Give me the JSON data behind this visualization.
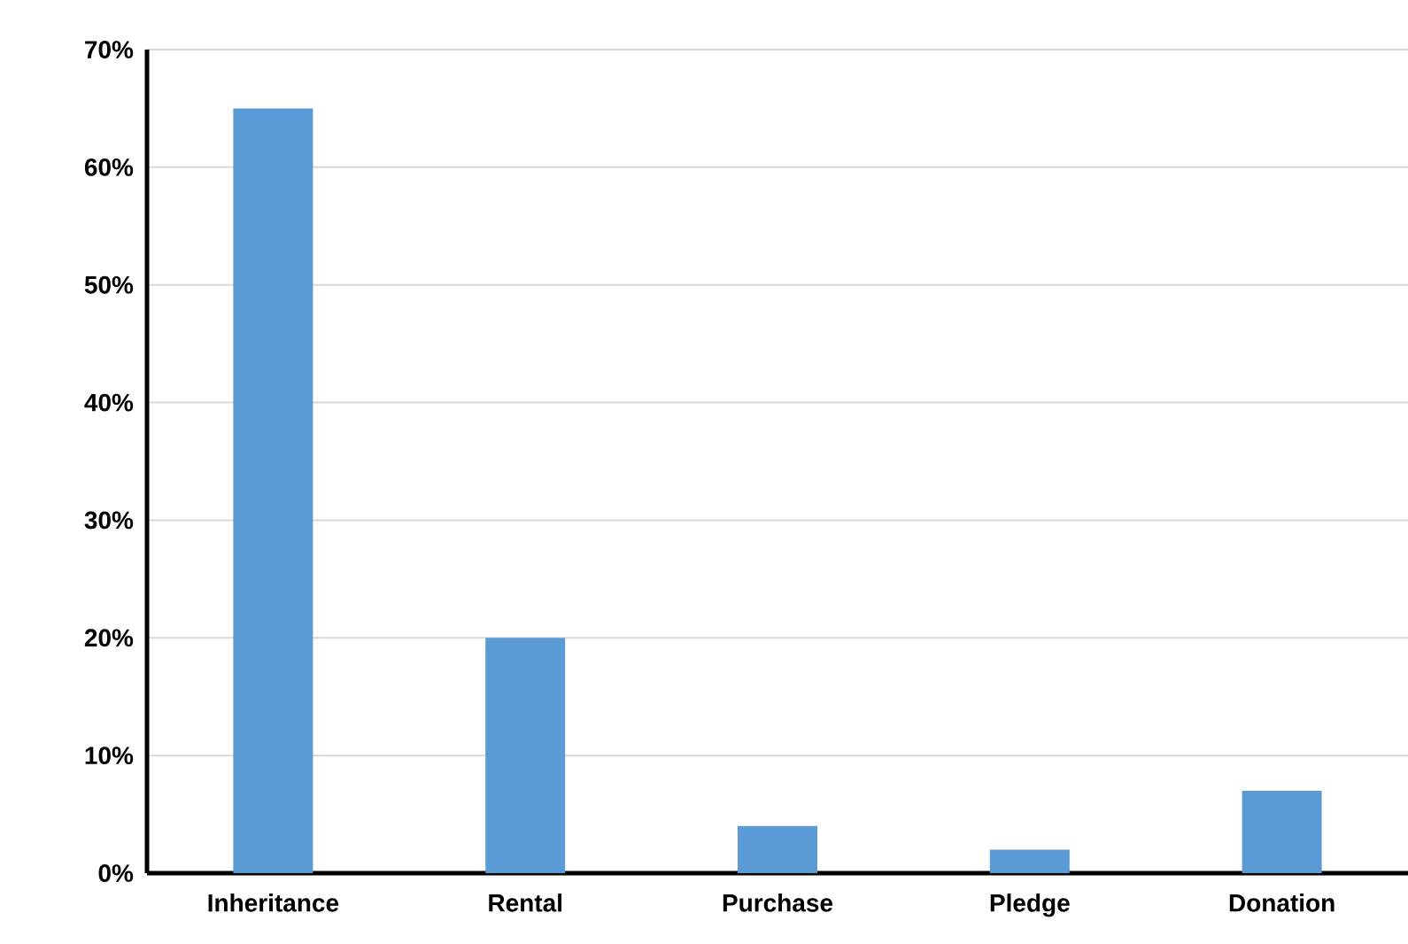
{
  "chart_data": {
    "type": "bar",
    "categories": [
      "Inheritance",
      "Rental",
      "Purchase",
      "Pledge",
      "Donation"
    ],
    "values": [
      65,
      20,
      4,
      2,
      7
    ],
    "color": "#5b9bd5",
    "ylim": [
      0,
      70
    ],
    "yticks": [
      {
        "value": 0,
        "label": "0%"
      },
      {
        "value": 10,
        "label": "10%"
      },
      {
        "value": 20,
        "label": "20%"
      },
      {
        "value": 30,
        "label": "30%"
      },
      {
        "value": 40,
        "label": "40%"
      },
      {
        "value": 50,
        "label": "50%"
      },
      {
        "value": 60,
        "label": "60%"
      },
      {
        "value": 70,
        "label": "70%"
      }
    ],
    "grid": "y"
  }
}
